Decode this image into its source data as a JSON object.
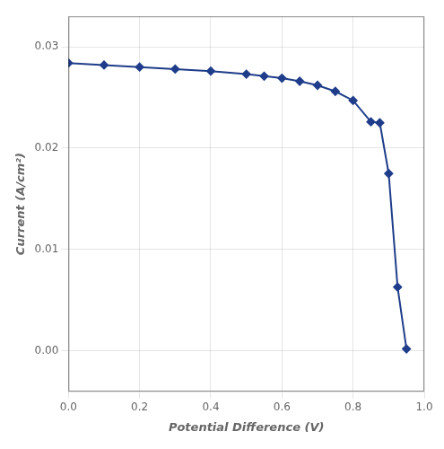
{
  "chart_data": {
    "type": "line",
    "xlabel": "Potential Difference (V)",
    "ylabel": "Current (A/cm²)",
    "x": [
      0.0,
      0.1,
      0.2,
      0.3,
      0.4,
      0.5,
      0.55,
      0.6,
      0.65,
      0.7,
      0.75,
      0.8,
      0.85,
      0.875,
      0.9,
      0.925,
      0.95
    ],
    "values": [
      0.0284,
      0.0282,
      0.028,
      0.0278,
      0.0276,
      0.0273,
      0.0271,
      0.0269,
      0.0266,
      0.0262,
      0.0256,
      0.0247,
      0.0226,
      0.0225,
      0.0175,
      0.0063,
      0.0002
    ],
    "color": "#1f3d8a",
    "marker": "diamond",
    "xlim": [
      0,
      1.0
    ],
    "ylim": [
      -0.004,
      0.033
    ],
    "xticks": [
      {
        "value": 0,
        "label": "0.0"
      },
      0.2,
      0.4,
      0.6,
      0.8,
      {
        "value": 1.0,
        "label": "1.0"
      }
    ],
    "yticks": [
      {
        "value": 0,
        "label": "0.00"
      },
      0.01,
      0.02,
      0.03
    ],
    "grid": true
  }
}
